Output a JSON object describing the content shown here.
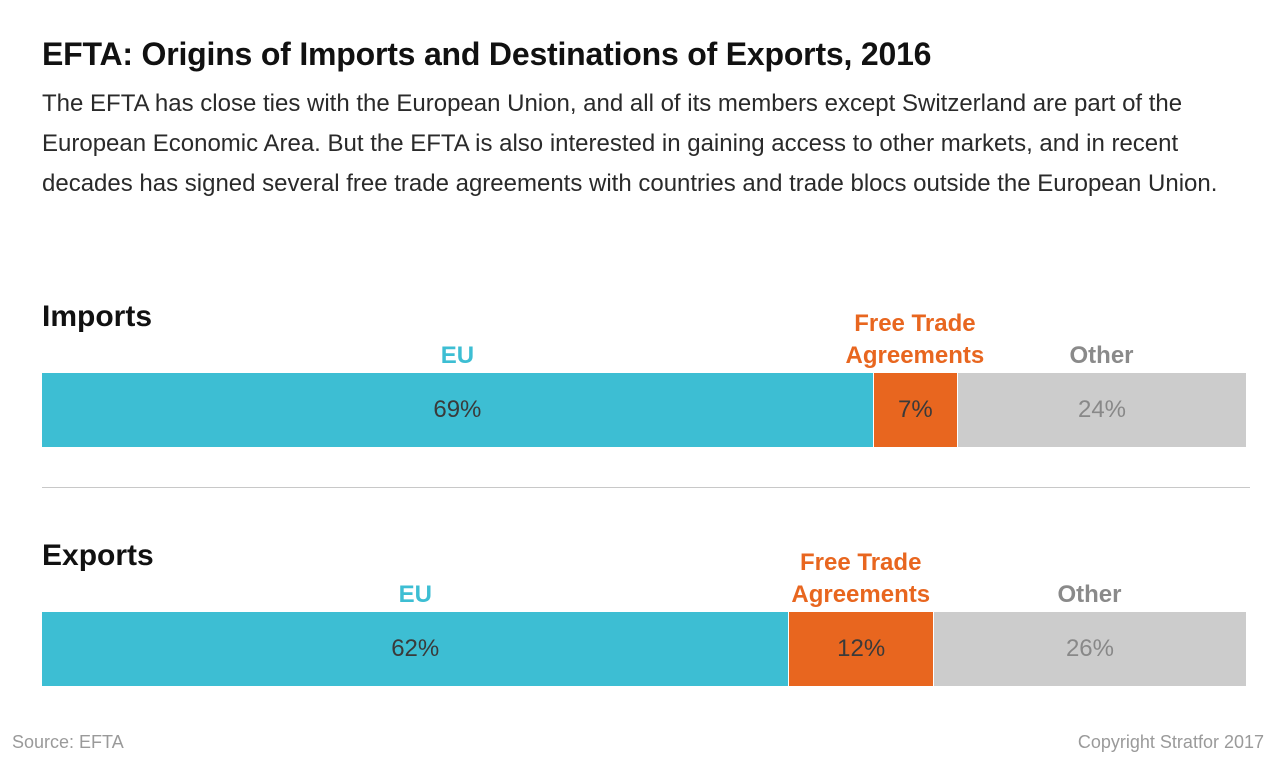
{
  "title": "EFTA: Origins of Imports and Destinations of Exports, 2016",
  "subtitle": "The EFTA has close ties with the European Union, and all of its members except Switzerland are part of the European Economic Area. But the EFTA is also interested in gaining access to other markets, and in recent decades has signed several free trade agreements with countries and trade blocs outside the European Union.",
  "source": "Source: EFTA",
  "copyright": "Copyright Stratfor 2017",
  "colors": {
    "eu": "#3dbed3",
    "fta": "#e8661f",
    "other": "#cccccc",
    "label_other": "#8a8a8a"
  },
  "chart_data": [
    {
      "type": "bar",
      "orientation": "horizontal",
      "stacked": true,
      "title": "Imports",
      "unit": "%",
      "categories": [
        "EU",
        "Free Trade Agreements",
        "Other"
      ],
      "values": [
        69,
        7,
        24
      ],
      "value_labels": [
        "69%",
        "7%",
        "24%"
      ],
      "label_lines": [
        [
          "EU"
        ],
        [
          "Free Trade",
          "Agreements"
        ],
        [
          "Other"
        ]
      ]
    },
    {
      "type": "bar",
      "orientation": "horizontal",
      "stacked": true,
      "title": "Exports",
      "unit": "%",
      "categories": [
        "EU",
        "Free Trade Agreements",
        "Other"
      ],
      "values": [
        62,
        12,
        26
      ],
      "value_labels": [
        "62%",
        "12%",
        "26%"
      ],
      "label_lines": [
        [
          "EU"
        ],
        [
          "Free Trade",
          "Agreements"
        ],
        [
          "Other"
        ]
      ]
    }
  ]
}
